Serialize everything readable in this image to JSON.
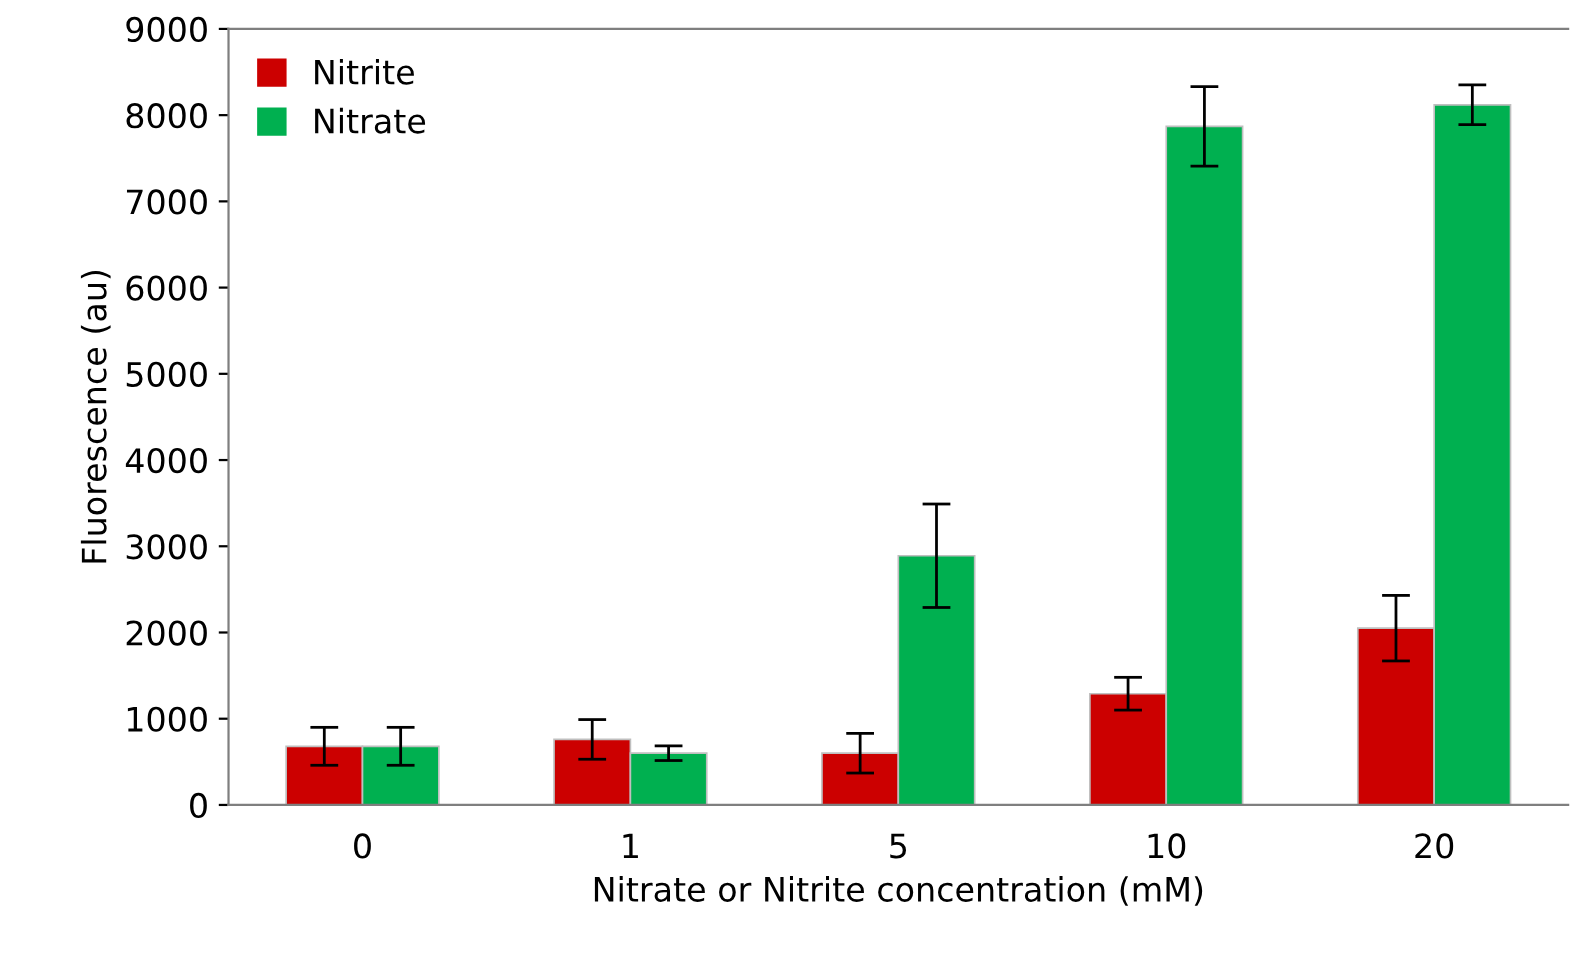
{
  "chart_data": {
    "type": "bar",
    "categories": [
      "0",
      "1",
      "5",
      "10",
      "20"
    ],
    "series": [
      {
        "name": "Nitrite",
        "color": "#cc0000",
        "values": [
          680,
          760,
          600,
          1290,
          2050
        ],
        "errors": [
          220,
          230,
          230,
          190,
          380
        ]
      },
      {
        "name": "Nitrate",
        "color": "#00b050",
        "values": [
          680,
          600,
          2890,
          7870,
          8120
        ],
        "errors": [
          220,
          85,
          600,
          460,
          230
        ]
      }
    ],
    "xlabel": "Nitrate or Nitrite concentration (mM)",
    "ylabel": "Fluorescence (au)",
    "ylim": [
      0,
      9000
    ],
    "yticks": [
      0,
      1000,
      2000,
      3000,
      4000,
      5000,
      6000,
      7000,
      8000,
      9000
    ],
    "grid": false,
    "legend": "top left"
  }
}
